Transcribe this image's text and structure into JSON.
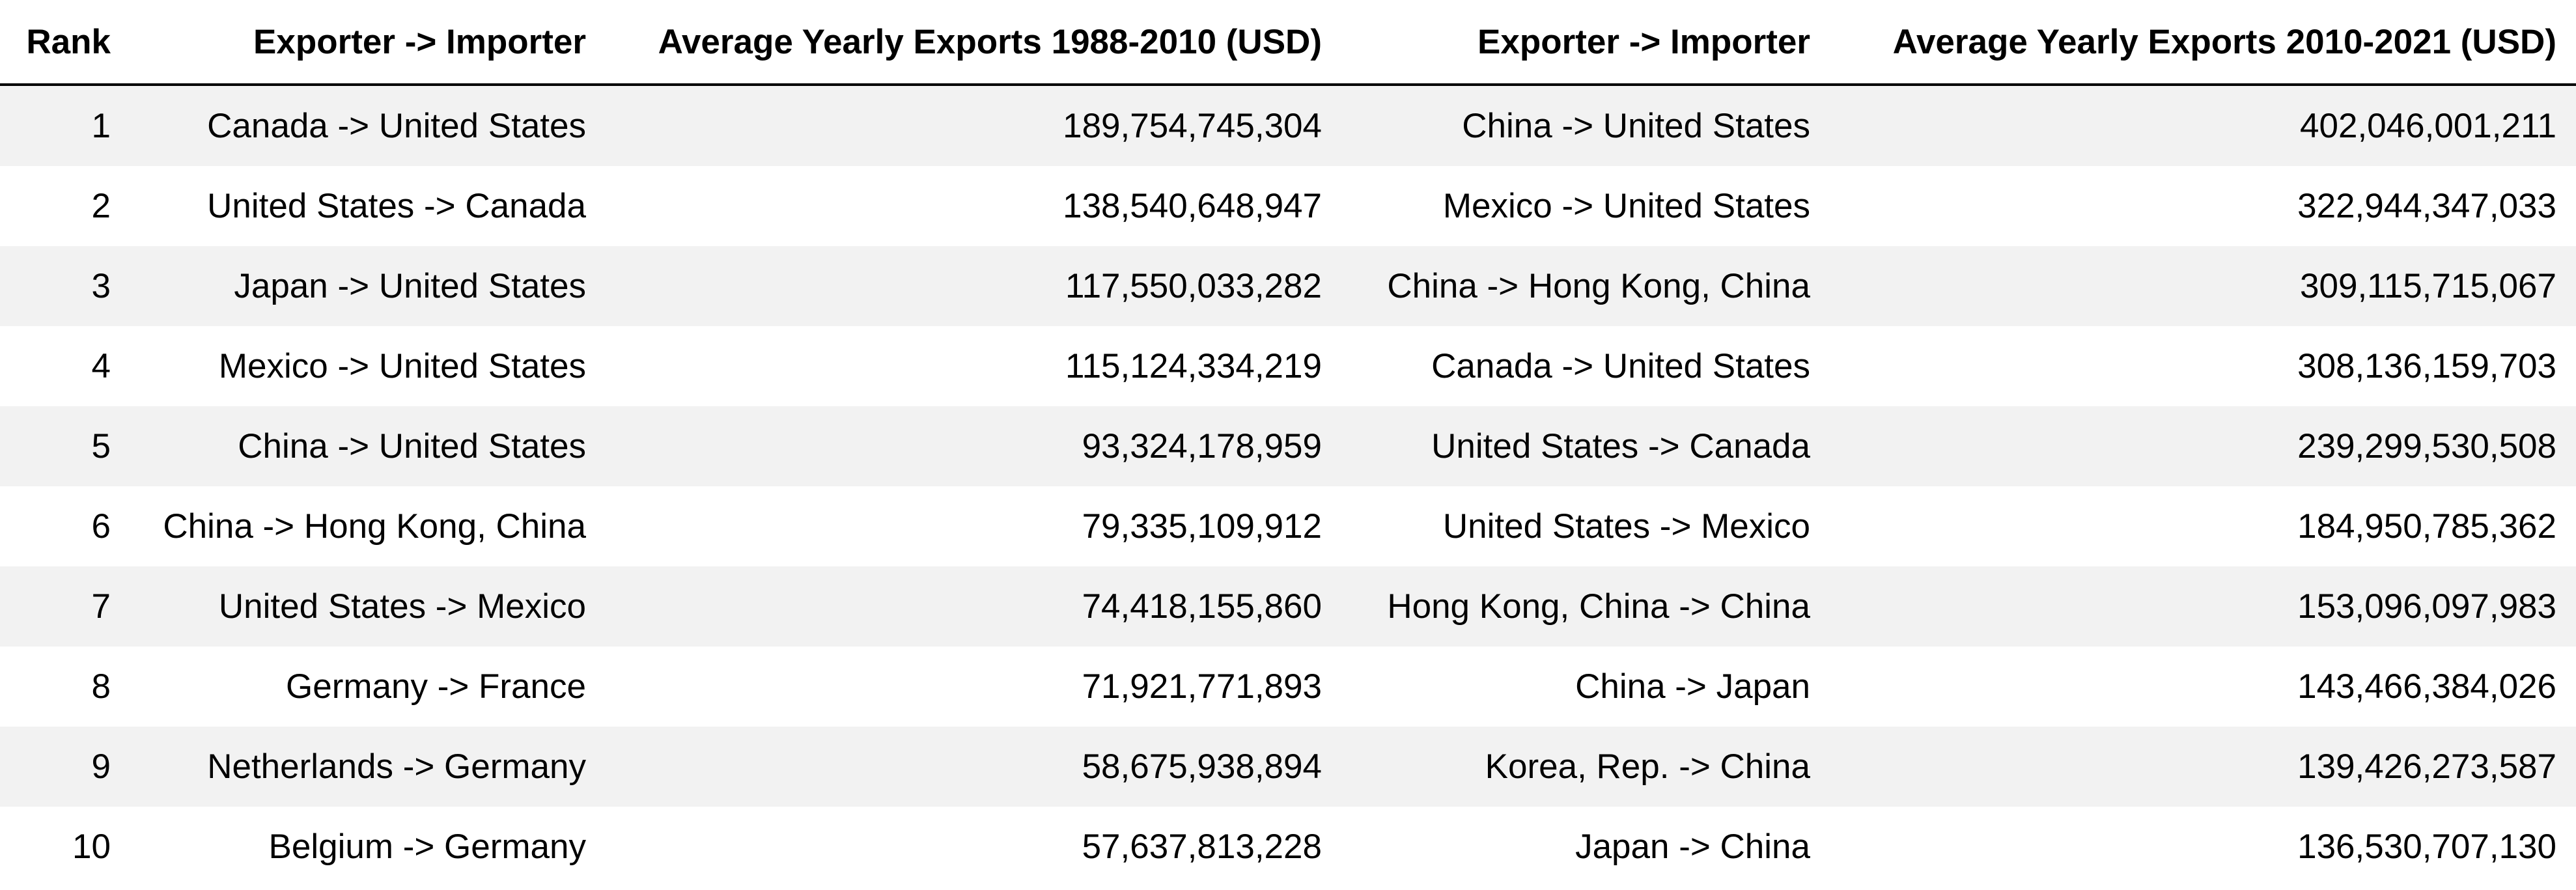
{
  "table": {
    "headers": {
      "rank": "Rank",
      "pair_1988": "Exporter -> Importer",
      "value_1988": "Average Yearly Exports 1988-2010 (USD)",
      "pair_2010": "Exporter -> Importer",
      "value_2010": "Average Yearly Exports 2010-2021 (USD)"
    },
    "rows": [
      {
        "rank": "1",
        "pair_1988": "Canada -> United States",
        "value_1988": "189,754,745,304",
        "pair_2010": "China -> United States",
        "value_2010": "402,046,001,211"
      },
      {
        "rank": "2",
        "pair_1988": "United States -> Canada",
        "value_1988": "138,540,648,947",
        "pair_2010": "Mexico -> United States",
        "value_2010": "322,944,347,033"
      },
      {
        "rank": "3",
        "pair_1988": "Japan -> United States",
        "value_1988": "117,550,033,282",
        "pair_2010": "China -> Hong Kong, China",
        "value_2010": "309,115,715,067"
      },
      {
        "rank": "4",
        "pair_1988": "Mexico -> United States",
        "value_1988": "115,124,334,219",
        "pair_2010": "Canada -> United States",
        "value_2010": "308,136,159,703"
      },
      {
        "rank": "5",
        "pair_1988": "China -> United States",
        "value_1988": "93,324,178,959",
        "pair_2010": "United States -> Canada",
        "value_2010": "239,299,530,508"
      },
      {
        "rank": "6",
        "pair_1988": "China -> Hong Kong, China",
        "value_1988": "79,335,109,912",
        "pair_2010": "United States -> Mexico",
        "value_2010": "184,950,785,362"
      },
      {
        "rank": "7",
        "pair_1988": "United States -> Mexico",
        "value_1988": "74,418,155,860",
        "pair_2010": "Hong Kong, China -> China",
        "value_2010": "153,096,097,983"
      },
      {
        "rank": "8",
        "pair_1988": "Germany -> France",
        "value_1988": "71,921,771,893",
        "pair_2010": "China -> Japan",
        "value_2010": "143,466,384,026"
      },
      {
        "rank": "9",
        "pair_1988": "Netherlands -> Germany",
        "value_1988": "58,675,938,894",
        "pair_2010": "Korea, Rep. -> China",
        "value_2010": "139,426,273,587"
      },
      {
        "rank": "10",
        "pair_1988": "Belgium -> Germany",
        "value_1988": "57,637,813,228",
        "pair_2010": "Japan -> China",
        "value_2010": "136,530,707,130"
      }
    ]
  }
}
